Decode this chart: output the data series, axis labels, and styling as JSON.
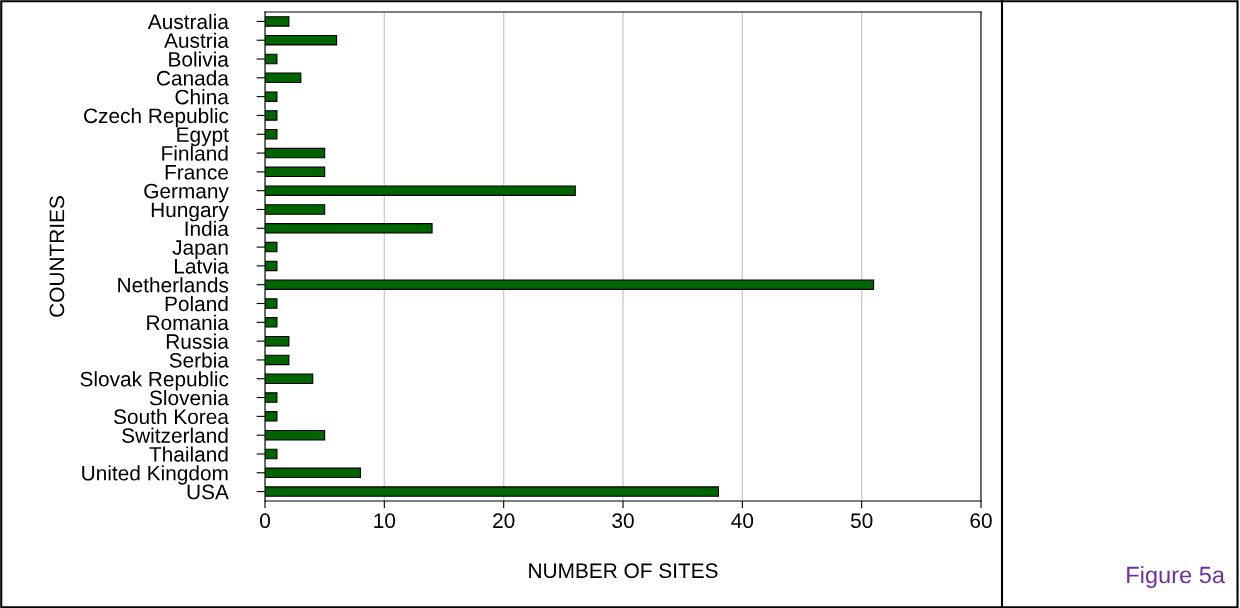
{
  "chart_data": {
    "type": "bar",
    "orientation": "horizontal",
    "xlabel": "NUMBER OF SITES",
    "ylabel": "COUNTRIES",
    "categories": [
      "Australia",
      "Austria",
      "Bolivia",
      "Canada",
      "China",
      "Czech Republic",
      "Egypt",
      "Finland",
      "France",
      "Germany",
      "Hungary",
      "India",
      "Japan",
      "Latvia",
      "Netherlands",
      "Poland",
      "Romania",
      "Russia",
      "Serbia",
      "Slovak Republic",
      "Slovenia",
      "South Korea",
      "Switzerland",
      "Thailand",
      "United Kingdom",
      "USA"
    ],
    "values": [
      2,
      6,
      1,
      3,
      1,
      1,
      1,
      5,
      5,
      26,
      5,
      14,
      1,
      1,
      51,
      1,
      1,
      2,
      2,
      4,
      1,
      1,
      5,
      1,
      8,
      38
    ],
    "color": "#006400",
    "xlim": [
      0,
      60
    ],
    "xticks": [
      0,
      10,
      20,
      30,
      40,
      50,
      60
    ],
    "grid": "x",
    "annotations": [
      "Figure 5a"
    ]
  }
}
